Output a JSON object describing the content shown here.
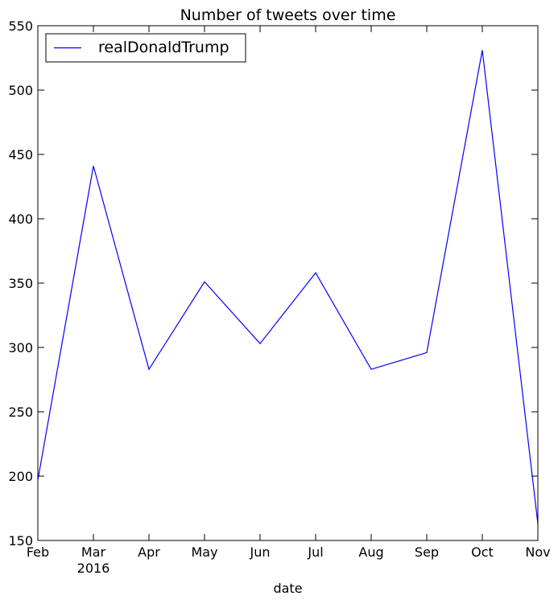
{
  "chart_data": {
    "type": "line",
    "title": "Number of tweets over time",
    "xlabel": "date",
    "ylabel": "",
    "x": [
      "Feb",
      "Mar",
      "Apr",
      "May",
      "Jun",
      "Jul",
      "Aug",
      "Sep",
      "Oct",
      "Nov"
    ],
    "x_year_label": {
      "under": "Mar",
      "text": "2016"
    },
    "ylim": [
      150,
      550
    ],
    "yticks": [
      150,
      200,
      250,
      300,
      350,
      400,
      450,
      500,
      550
    ],
    "grid": false,
    "legend_position": "top-left",
    "series": [
      {
        "name": "realDonaldTrump",
        "color": "#0000ff",
        "values": [
          197,
          441,
          283,
          351,
          303,
          358,
          283,
          296,
          531,
          163
        ]
      }
    ]
  }
}
